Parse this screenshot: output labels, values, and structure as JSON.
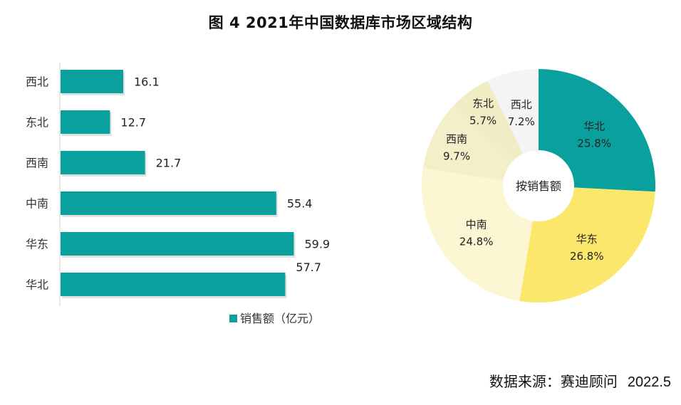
{
  "title": "图 4  2021年中国数据库市场区域结构",
  "source": {
    "label": "数据来源：赛迪顾问",
    "date": "2022.5"
  },
  "colors": {
    "bar": "#0aa09e",
    "pie": {
      "华北": "#0aa09e",
      "华东": "#fbe76b",
      "中南": "#fdf6d3",
      "西南": "#f3efc9",
      "东北": "#f0edc5",
      "西北": "#f4f4f4"
    }
  },
  "chart_data": [
    {
      "type": "bar",
      "orientation": "horizontal",
      "title": "",
      "categories": [
        "西北",
        "东北",
        "西南",
        "中南",
        "华东",
        "华北"
      ],
      "series": [
        {
          "name": "销售额（亿元）",
          "values": [
            16.1,
            12.7,
            21.7,
            55.4,
            59.9,
            57.7
          ]
        }
      ],
      "data_labels": [
        "16.1",
        "12.7",
        "21.7",
        "55.4",
        "59.9",
        "57.7"
      ],
      "legend": {
        "label": "销售额（亿元）",
        "position": "bottom-right"
      },
      "xlim": [
        0,
        60
      ],
      "grid": false
    },
    {
      "type": "pie",
      "variant": "donut",
      "center_label": "按销售额",
      "slices": [
        {
          "label": "华北",
          "value": 25.8,
          "text": "25.8%"
        },
        {
          "label": "华东",
          "value": 26.8,
          "text": "26.8%"
        },
        {
          "label": "中南",
          "value": 24.8,
          "text": "24.8%"
        },
        {
          "label": "西南",
          "value": 9.7,
          "text": "9.7%"
        },
        {
          "label": "东北",
          "value": 5.7,
          "text": "5.7%"
        },
        {
          "label": "西北",
          "value": 7.2,
          "text": "7.2%"
        }
      ]
    }
  ]
}
